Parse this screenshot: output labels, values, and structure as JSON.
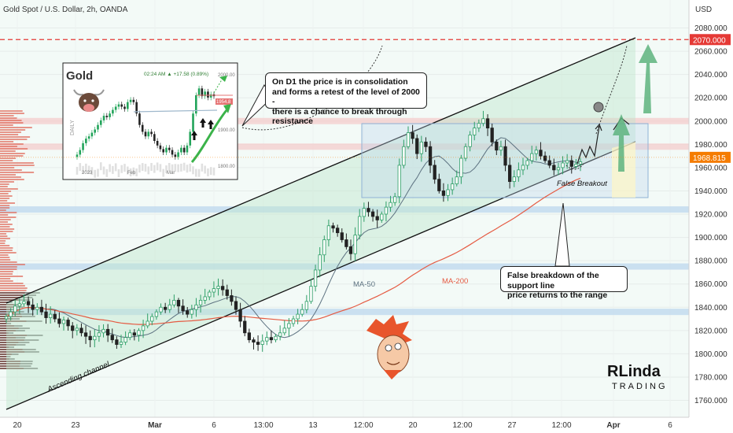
{
  "header": {
    "symbol_title": "Gold Spot / U.S. Dollar, 2h, OANDA",
    "currency": "USD"
  },
  "chart_data": {
    "type": "candlestick",
    "title": "Gold Spot / U.S. Dollar, 2h, OANDA",
    "y_axis": {
      "unit": "USD",
      "ylim": [
        1750,
        2090
      ],
      "ticks": [
        1760,
        1780,
        1800,
        1820,
        1840,
        1860,
        1880,
        1900,
        1920,
        1940,
        1960,
        1980,
        2000,
        2020,
        2040,
        2060,
        2080
      ],
      "tick_labels": [
        "1760.000",
        "1780.000",
        "1800.000",
        "1820.000",
        "1840.000",
        "1860.000",
        "1880.000",
        "1900.000",
        "1920.000",
        "1940.000",
        "1960.000",
        "1980.000",
        "2000.000",
        "2020.000",
        "2040.000",
        "2060.000",
        "2080.000"
      ]
    },
    "x_axis": {
      "tick_labels": [
        "20",
        "23",
        "Mar",
        "6",
        "13:00",
        "13",
        "12:00",
        "20",
        "12:00",
        "27",
        "12:00",
        "Apr",
        "6"
      ]
    },
    "price_badges": [
      {
        "label": "2070.000",
        "value": 2070,
        "color": "#e53935"
      },
      {
        "label": "1968.815",
        "value": 1968.815,
        "color": "#f57c00"
      }
    ],
    "close_path": [
      1832,
      1836,
      1841,
      1843,
      1845,
      1842,
      1838,
      1840,
      1836,
      1831,
      1834,
      1830,
      1826,
      1829,
      1824,
      1820,
      1822,
      1818,
      1815,
      1812,
      1815,
      1818,
      1821,
      1816,
      1812,
      1808,
      1810,
      1814,
      1818,
      1816,
      1820,
      1824,
      1828,
      1832,
      1836,
      1840,
      1838,
      1842,
      1846,
      1841,
      1837,
      1834,
      1838,
      1842,
      1846,
      1849,
      1853,
      1856,
      1858,
      1855,
      1850,
      1845,
      1838,
      1828,
      1818,
      1812,
      1810,
      1808,
      1811,
      1814,
      1812,
      1815,
      1818,
      1822,
      1826,
      1830,
      1834,
      1838,
      1845,
      1858,
      1872,
      1885,
      1898,
      1910,
      1908,
      1904,
      1898,
      1892,
      1886,
      1902,
      1918,
      1925,
      1922,
      1918,
      1915,
      1920,
      1926,
      1930,
      1935,
      1962,
      1978,
      1990,
      1985,
      1972,
      1982,
      1978,
      1962,
      1950,
      1940,
      1936,
      1941,
      1946,
      1952,
      1968,
      1978,
      1988,
      1994,
      1998,
      2002,
      1994,
      1982,
      1975,
      1978,
      1962,
      1948,
      1952,
      1958,
      1962,
      1966,
      1972,
      1975,
      1970,
      1966,
      1962,
      1958,
      1960,
      1964,
      1966,
      1961,
      1963,
      1965
    ],
    "horizontal_levels": [
      {
        "value": 2070,
        "style": "dashed",
        "color": "#e53935"
      },
      {
        "value": 2000,
        "style": "zone",
        "color": "#f4cccc"
      },
      {
        "value": 1978,
        "style": "zone",
        "color": "#f4cccc"
      },
      {
        "value": 1924,
        "style": "zone",
        "color": "#bcd7ee"
      },
      {
        "value": 1875,
        "style": "zone",
        "color": "#bcd7ee"
      },
      {
        "value": 1836,
        "style": "zone",
        "color": "#bcd7ee"
      }
    ],
    "range_box": {
      "y_top": 1999,
      "y_bottom": 1935
    },
    "moving_averages": [
      {
        "name": "MA-50",
        "color": "#5d7281"
      },
      {
        "name": "MA-200",
        "color": "#e55b43"
      }
    ],
    "channel": {
      "name": "Ascending channel"
    },
    "annotations": [
      "On D1 the price is in consolidation\nand forms a retest of the level of 2000 -\nthere is a chance to break through resistance",
      "False Breakout",
      "False breakdown of the support line\nprice returns to the range"
    ],
    "inset": {
      "title": "Gold",
      "change": "02:24 AM  ▲ +17.58 (0.89%)",
      "timeframe": "DAILY",
      "x_labels": [
        "2023",
        "Feb",
        "Mar"
      ],
      "y_labels": [
        "2000.00",
        "1900.00",
        "1800.00"
      ],
      "price_tag": "1954.8"
    }
  },
  "logo": {
    "line1": "RLinda",
    "line2": "TRADING"
  }
}
